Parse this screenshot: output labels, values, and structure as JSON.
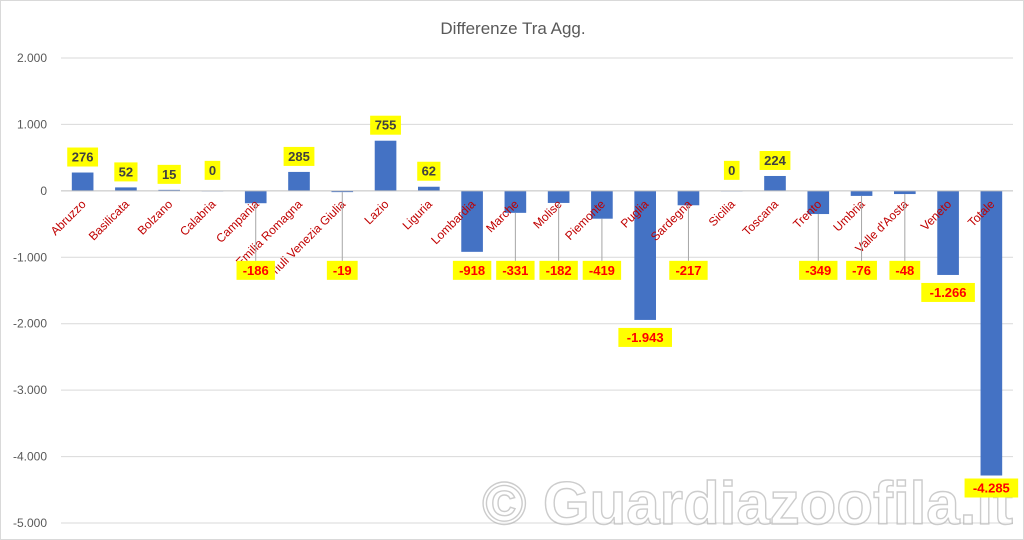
{
  "colors": {
    "bar": "#4472c4",
    "label_bg": "#ffff00",
    "label_text_positive": "#404040",
    "label_text_negative": "#ff0000",
    "category_text": "#c00000",
    "axis_text": "#595959",
    "grid": "#d9d9d9"
  },
  "watermark": "© Guardiazoofila.it",
  "chart_data": {
    "type": "bar",
    "title": "Differenze Tra Agg.",
    "xlabel": "",
    "ylabel": "",
    "ylim": [
      -5000,
      2000
    ],
    "yticks": [
      2000,
      1000,
      0,
      -1000,
      -2000,
      -3000,
      -4000,
      -5000
    ],
    "ytick_labels": [
      "2.000",
      "1.000",
      "0",
      "-1.000",
      "-2.000",
      "-3.000",
      "-4.000",
      "-5.000"
    ],
    "grid": true,
    "legend": "none",
    "categories": [
      "Abruzzo",
      "Basilicata",
      "Bolzano",
      "Calabria",
      "Campania",
      "Emilia Romagna",
      "Friuli Venezia Giulia",
      "Lazio",
      "Liguria",
      "Lombardia",
      "Marche",
      "Molise",
      "Piemonte",
      "Puglia",
      "Sardegna",
      "Sicilia",
      "Toscana",
      "Trento",
      "Umbria",
      "Valle d'Aosta",
      "Veneto",
      "Totale"
    ],
    "values": [
      276,
      52,
      15,
      0,
      -186,
      285,
      -19,
      755,
      62,
      -918,
      -331,
      -182,
      -419,
      -1943,
      -217,
      0,
      224,
      -349,
      -76,
      -48,
      -1266,
      -4285
    ],
    "data_labels": [
      "276",
      "52",
      "15",
      "0",
      "-186",
      "285",
      "-19",
      "755",
      "62",
      "-918",
      "-331",
      "-182",
      "-419",
      "-1.943",
      "-217",
      "0",
      "224",
      "-349",
      "-76",
      "-48",
      "-1.266",
      "-4.285"
    ]
  }
}
